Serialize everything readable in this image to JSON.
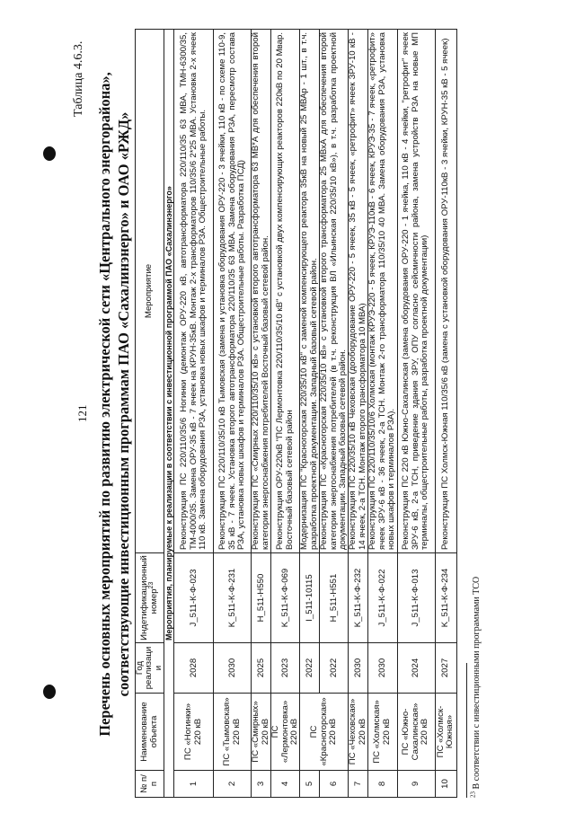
{
  "page_number": "121",
  "table_label": "Таблица 4.6.3.",
  "title_line1": "Перечень основных мероприятий по развитию электрической сети «Центрального энергорайона»,",
  "title_line2": "соответствующие инвестиционным программам ПАО «Сахалинэнерго» и ОАО «РЖД»",
  "headers": {
    "num": "№ п/п",
    "name": "Наименование объекта",
    "year": "Год реализации",
    "id": "Индетификационный номер",
    "id_footnote_ref": "23",
    "measure": "Мероприятие"
  },
  "section": "Мероприятия, планируемые к реализации в соответствии с инвестиционной программой ПАО «Сахалинэнерго»",
  "rows": [
    {
      "num": "1",
      "name": "ПС «Ногинки» 220 кВ",
      "year": "2028",
      "id": "J_511-К-Ф-023",
      "measure": "Реконструкция ПС 220/110/35/6 Ногинки (демонтаж ОРУ-220 кВ, автотрансформатора 220/110/35 63 МВА, ТМН-6300/35, ТМ-4000/35. Замена ОРУ-35 кВ - 7 ячеек на КРУН-35кВ. Монтаж 2-х трансформаторов 110/35/6 2*25 МВА. Установка 2-х ячеек 110 кВ. Замена оборудования РЗА, установка новых шкафов и терминалов РЗА. Общестроительные работы."
    },
    {
      "num": "2",
      "name": "ПС «Тымовская» 220 кВ",
      "year": "2030",
      "id": "K_511-К-Ф-231",
      "measure": "Реконструкция ПС 220/110/35/10 кВ Тымовская (замена и установка оборудования ОРУ-220 - 3 ячейки, 110 кВ - по схеме 110-9, 35 кВ - 7 ячеек. Установка второго автотрансформатора 220/110/35 63 МВА. Замена оборудования РЗА, пересмотр состава РЗА, установка новых шкафов и терминалов РЗА. Общестроительные работы. Разработка ПСД)"
    },
    {
      "num": "3",
      "name": "ПС «Смирных» 220 кВ",
      "year": "2025",
      "id": "H_511-H550",
      "measure": "Реконструкция ПС «Смирных 220/110/35/10 кВ» с установкой второго автотрансформатора 63 МВ*А для обеспечения второй категории энергоснабжения потребителей Восточный базовый сетевой район."
    },
    {
      "num": "4",
      "name": "ПС «Лермонтовка» 220 кВ",
      "year": "2023",
      "id": "K_511-К-Ф-069",
      "measure": "Реконструкция ОРУ-220кВ \"ПС Лермонтовка 220/110/35/10 кВ\" с установкой двух компенсирующих реакторов 220кВ по 20 Мвар. Восточный базовый сетевой район"
    },
    {
      "num": "5",
      "name": "ПС «Красногорская» 220 кВ",
      "year": "2022",
      "id": "I_511-10115",
      "measure": "Модернизация ПС \"Красногорская 220/35/10 кВ\" с заменой компенсирующего реактора 35кВ на новый 25 МВАр - 1 шт., в т.ч. разработка проектной документации. Западный базовый сетевой район."
    },
    {
      "num": "6",
      "name": "",
      "year": "2022",
      "id": "H_511-H551",
      "measure": "Реконструкция ПС «Красногорская 220/35/10 кВ» с установкой второго трансформатора 25 МВхА для обеспечения второй категории энергоснабжения потребителей (в т.ч. реконструкция ВЛ «Ильинская 220/35/10 кВ»), в т.ч. разработка проектной документации. Западный базовый сетевой район."
    },
    {
      "num": "7",
      "name": "ПС «Чеховская» 220 кВ",
      "year": "2030",
      "id": "K_511-К-Ф-232",
      "measure": "Реконструкция ПС 220/35/10 кВ Чеховская (дооборудование ОРУ-220 - 5 ячеек, 35 кВ - 5 ячеек, «ретрофит» ячеек ЗРУ-10 кВ - 14 ячеек, 2-а ТСН. Монтаж второго трансформатора 10 МВА)"
    },
    {
      "num": "8",
      "name": "ПС «Холмская» 220 кВ",
      "year": "2030",
      "id": "J_511-К-Ф-022",
      "measure": "Реконструкция ПС 220/110/35/10/6 Холмская (монтаж КРУЭ-220 - 5 ячеек, КРУЭ-110кВ - 6 ячеек, КРУЭ-35 - 7 ячеек, «ретрофит» ячеек ЗРУ-6 кВ - 36 ячеек, 2-а ТСН. Монтаж 2-го трансформатора 110/35/10 40 МВА. Замена оборудования РЗА, установка новых шкафов и терминалов РЗА)."
    },
    {
      "num": "9",
      "name": "ПС «Южно-Сахалинская» 220 кВ",
      "year": "2024",
      "id": "J_511-К-Ф-013",
      "measure": "Реконструкция ПС 220 кВ Южно-Сахалинская (замена оборудования ОРУ-220 - 1 ячейка, 110 кВ - 4 ячейки, \"ретрофит\" ячеек ЗРУ-6 кВ, 2-а ТСН, приведение здания ЗРУ, ОПУ согласно сейсмичности района, замена устройств РЗА на новые МП терминалы, общестроительные работы, разработка проектной документации)"
    },
    {
      "num": "10",
      "name": "ПС «Холмск-Южная»",
      "year": "2027",
      "id": "K_511-К-Ф-234",
      "measure": "Реконструкция ПС Холмск-Южная 110/35/6 кВ (замена с установкой оборудования ОРУ-110кВ - 3 ячейки, КРУН-35 кВ - 5 ячеек)"
    }
  ],
  "footnote_num": "23",
  "footnote": "В соответствии с инвестиционными программами ТСО"
}
